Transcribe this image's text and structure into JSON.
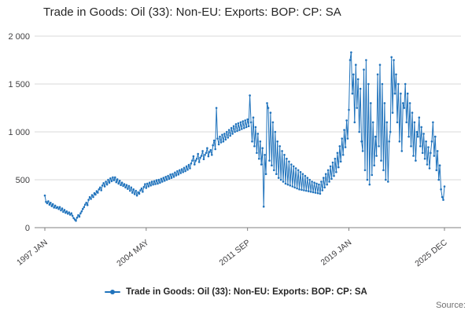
{
  "page": {
    "title": "Trade in Goods: Oil (33): Non-EU: Exports: BOP: CP: SA",
    "source_label": "Source:"
  },
  "legend": {
    "label": "Trade in Goods: Oil (33): Non-EU: Exports: BOP: CP: SA"
  },
  "colors": {
    "line": "#2073bc",
    "grid": "#d9d9d9",
    "axis": "#808080",
    "tick_text": "#414042"
  },
  "chart_data": {
    "type": "line",
    "title": "Trade in Goods: Oil (33): Non-EU: Exports: BOP: CP: SA",
    "xlabel": "",
    "ylabel": "",
    "x_start": "1997 JAN",
    "x_end": "2025 DEC",
    "x_ticks": [
      "1997 JAN",
      "2004 MAY",
      "2011 SEP",
      "2019 JAN",
      "2025 DEC"
    ],
    "x_tick_month_index": [
      0,
      88,
      176,
      264,
      347
    ],
    "ylim": [
      0,
      2000
    ],
    "y_ticks": [
      0,
      500,
      1000,
      1500,
      2000
    ],
    "y_tick_labels": [
      "0",
      "500",
      "1 000",
      "1 500",
      "2 000"
    ],
    "grid": true,
    "legend_position": "bottom",
    "marker": "circle",
    "frequency": "monthly",
    "series": [
      {
        "name": "Trade in Goods: Oil (33): Non-EU: Exports: BOP: CP: SA",
        "values": [
          335,
          270,
          255,
          275,
          240,
          260,
          225,
          245,
          210,
          230,
          205,
          215,
          195,
          215,
          180,
          200,
          165,
          185,
          155,
          170,
          145,
          160,
          135,
          150,
          125,
          100,
          85,
          72,
          105,
          130,
          115,
          150,
          170,
          195,
          215,
          240,
          260,
          235,
          290,
          320,
          300,
          340,
          320,
          360,
          345,
          380,
          365,
          400,
          420,
          390,
          440,
          465,
          430,
          480,
          450,
          500,
          470,
          515,
          485,
          525,
          495,
          525,
          475,
          505,
          460,
          490,
          445,
          470,
          435,
          455,
          420,
          445,
          405,
          435,
          385,
          420,
          365,
          400,
          350,
          385,
          335,
          370,
          355,
          390,
          410,
          375,
          425,
          455,
          415,
          460,
          430,
          470,
          440,
          480,
          450,
          485,
          455,
          495,
          460,
          500,
          470,
          510,
          480,
          520,
          490,
          530,
          500,
          540,
          510,
          555,
          520,
          560,
          530,
          575,
          545,
          590,
          555,
          600,
          570,
          610,
          580,
          625,
          590,
          640,
          605,
          655,
          620,
          670,
          700,
          745,
          660,
          700,
          720,
          770,
          685,
          730,
          750,
          800,
          715,
          760,
          780,
          830,
          745,
          790,
          810,
          760,
          860,
          910,
          820,
          1250,
          930,
          870,
          950,
          890,
          970,
          900,
          980,
          920,
          1000,
          940,
          1020,
          960,
          1040,
          980,
          1060,
          1000,
          1080,
          1010,
          1090,
          1020,
          1100,
          1030,
          1110,
          1040,
          1120,
          1050,
          1130,
          1060,
          1380,
          1100,
          900,
          1150,
          850,
          1050,
          780,
          980,
          720,
          900,
          660,
          830,
          220,
          760,
          560,
          1300,
          1250,
          700,
          1200,
          650,
          1100,
          600,
          1000,
          560,
          900,
          520,
          850,
          500,
          800,
          480,
          760,
          460,
          720,
          450,
          690,
          440,
          660,
          430,
          640,
          420,
          620,
          410,
          600,
          400,
          580,
          395,
          560,
          390,
          540,
          385,
          520,
          380,
          500,
          375,
          480,
          370,
          470,
          365,
          460,
          360,
          450,
          355,
          480,
          390,
          520,
          420,
          560,
          450,
          600,
          480,
          640,
          510,
          680,
          540,
          720,
          580,
          780,
          630,
          850,
          690,
          930,
          760,
          1020,
          840,
          1120,
          930,
          1230,
          1750,
          1830,
          1400,
          1600,
          1100,
          1700,
          1250,
          1550,
          1000,
          1450,
          900,
          800,
          1650,
          600,
          1750,
          500,
          1500,
          450,
          1300,
          550,
          1100,
          650,
          950,
          750,
          1600,
          850,
          1700,
          700,
          1500,
          600,
          1300,
          500,
          1100,
          480,
          900,
          1000,
          1780,
          1200,
          1750,
          1400,
          1600,
          1100,
          1500,
          900,
          1400,
          800,
          1300,
          1250,
          1500,
          1100,
          1400,
          950,
          1300,
          850,
          1200,
          750,
          1100,
          700,
          1000,
          950,
          1150,
          850,
          1050,
          780,
          980,
          720,
          900,
          660,
          840,
          620,
          780,
          900,
          1100,
          750,
          950,
          600,
          800,
          500,
          650,
          400,
          320,
          290,
          430
        ]
      }
    ]
  }
}
